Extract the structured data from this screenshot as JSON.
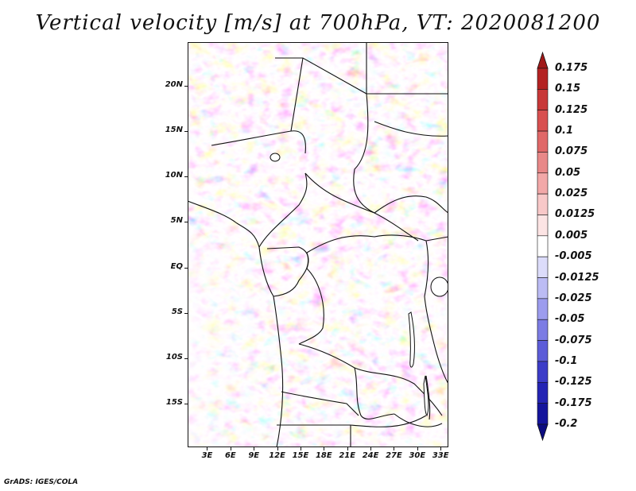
{
  "title": "Vertical velocity [m/s] at 700hPa, VT: 2020081200",
  "credit": "GrADS: IGES/COLA",
  "lat_labels": [
    "20N",
    "15N",
    "10N",
    "5N",
    "EQ",
    "5S",
    "10S",
    "15S"
  ],
  "lat_values": [
    20,
    15,
    10,
    5,
    0,
    -5,
    -10,
    -15
  ],
  "lon_labels": [
    "3E",
    "6E",
    "9E",
    "12E",
    "15E",
    "18E",
    "21E",
    "24E",
    "27E",
    "30E",
    "33E"
  ],
  "lon_values": [
    3,
    6,
    9,
    12,
    15,
    18,
    21,
    24,
    27,
    30,
    33
  ],
  "extent": {
    "lon_min": 0.5,
    "lon_max": 34,
    "lat_min": -19.8,
    "lat_max": 24.8
  },
  "colorbar": {
    "labels": [
      "0.175",
      "0.15",
      "0.125",
      "0.1",
      "0.075",
      "0.05",
      "0.025",
      "0.0125",
      "0.005",
      "-0.005",
      "-0.0125",
      "-0.025",
      "-0.05",
      "-0.075",
      "-0.1",
      "-0.125",
      "-0.175",
      "-0.2"
    ],
    "colors": [
      "#a01818",
      "#b42222",
      "#c83838",
      "#d85050",
      "#e06868",
      "#e88888",
      "#f2a8a8",
      "#f8c8c8",
      "#fce4e4",
      "#ffffff",
      "#dcdcfa",
      "#bcbcf4",
      "#9c9cee",
      "#7c7ce4",
      "#5c5cd8",
      "#3c3cc8",
      "#2424b4",
      "#14149c",
      "#0c0c80"
    ]
  },
  "map_features": [
    "vertical-velocity-field",
    "country-borders",
    "coastline",
    "lake-victoria",
    "lake-tanganyika",
    "lake-malawi"
  ]
}
